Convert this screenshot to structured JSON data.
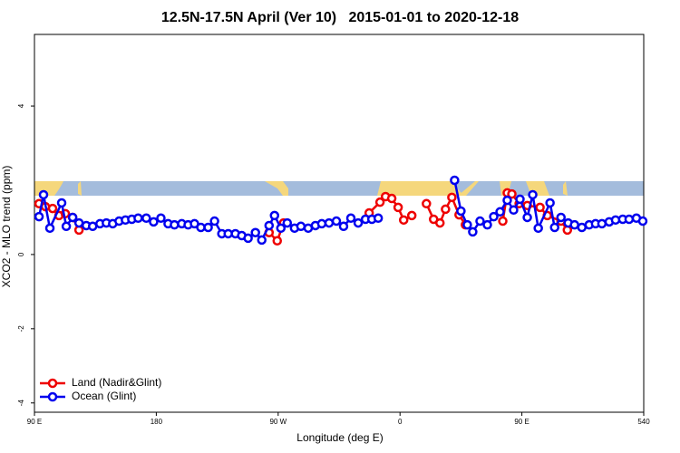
{
  "chart_data": {
    "type": "line",
    "title": "12.5N-17.5N April (Ver 10)   2015-01-01 to 2020-12-18",
    "xlabel": "Longitude (deg E)",
    "ylabel": "XCO2 - MLO trend (ppm)",
    "xlim": [
      90,
      540
    ],
    "ylim": [
      -4.25,
      5.93
    ],
    "xticks": [
      {
        "value": 90,
        "label": "90 E"
      },
      180,
      {
        "value": 270,
        "label": "90 W"
      },
      {
        "value": 360,
        "label": "0"
      },
      {
        "value": 450,
        "label": "90 E"
      },
      540
    ],
    "yticks": [
      -4,
      -2,
      0,
      4
    ],
    "legend": "bottom-left",
    "series": [
      {
        "name": "Land (Nadir&Glint)",
        "color": "#ee0000",
        "x": [
          93.4,
          98.1,
          103.4,
          108.1,
          112.8,
          118.2,
          122.9,
          null,
          263.3,
          269.3,
          274.0,
          null,
          337.2,
          345.2,
          349.3,
          353.9,
          358.6,
          362.7,
          368.7,
          null,
          379.5,
          384.8,
          389.5,
          393.6,
          398.3,
          403.6,
          408.3,
          null,
          435.9,
          439.2,
          442.6,
          448.0,
          454.0,
          463.4,
          468.8,
          478.9,
          483.6
        ],
        "values": [
          1.37,
          1.29,
          1.24,
          1.05,
          1.1,
          1.0,
          0.66,
          null,
          0.59,
          0.37,
          0.85,
          null,
          1.12,
          1.41,
          1.56,
          1.51,
          1.27,
          0.93,
          1.05,
          null,
          1.37,
          0.95,
          0.85,
          1.22,
          1.54,
          1.07,
          0.8,
          null,
          0.9,
          1.66,
          1.63,
          1.37,
          1.32,
          1.27,
          1.05,
          0.9,
          0.66
        ]
      },
      {
        "name": "Ocean (Glint)",
        "color": "#0000ee",
        "x": [
          93.4,
          96.7,
          101.4,
          110.1,
          113.5,
          118.2,
          122.9,
          128.3,
          133.0,
          138.4,
          143.1,
          147.8,
          152.5,
          157.2,
          161.9,
          166.6,
          172.6,
          178.0,
          183.4,
          188.7,
          193.4,
          198.8,
          203.5,
          208.2,
          212.9,
          218.3,
          223.0,
          228.4,
          233.1,
          238.4,
          243.1,
          247.8,
          253.2,
          257.9,
          263.3,
          267.3,
          272.0,
          276.7,
          282.1,
          286.8,
          292.2,
          297.5,
          302.2,
          307.6,
          313.0,
          318.3,
          323.7,
          329.1,
          334.5,
          339.2,
          343.9,
          null,
          400.3,
          405.0,
          409.7,
          413.7,
          419.1,
          424.5,
          429.2,
          433.9,
          439.2,
          443.9,
          448.6,
          454.0,
          458.0,
          462.1,
          470.8,
          474.2,
          478.9,
          484.2,
          488.9,
          494.3,
          499.7,
          504.4,
          509.1,
          514.5,
          519.2,
          524.5,
          529.2,
          534.6,
          539.3
        ],
        "values": [
          1.02,
          1.61,
          0.71,
          1.39,
          0.76,
          1.0,
          0.85,
          0.78,
          0.76,
          0.83,
          0.85,
          0.83,
          0.9,
          0.93,
          0.95,
          0.98,
          0.98,
          0.88,
          0.98,
          0.83,
          0.8,
          0.83,
          0.8,
          0.83,
          0.73,
          0.73,
          0.9,
          0.56,
          0.56,
          0.56,
          0.51,
          0.44,
          0.59,
          0.39,
          0.78,
          1.05,
          0.71,
          0.85,
          0.71,
          0.76,
          0.71,
          0.78,
          0.83,
          0.85,
          0.9,
          0.76,
          0.98,
          0.85,
          0.95,
          0.95,
          0.98,
          null,
          2.0,
          1.17,
          0.8,
          0.61,
          0.9,
          0.8,
          1.02,
          1.15,
          1.46,
          1.2,
          1.49,
          1.0,
          1.61,
          0.71,
          1.39,
          0.73,
          1.0,
          0.85,
          0.8,
          0.73,
          0.8,
          0.83,
          0.83,
          0.88,
          0.93,
          0.95,
          0.95,
          0.98,
          0.9
        ]
      }
    ]
  }
}
